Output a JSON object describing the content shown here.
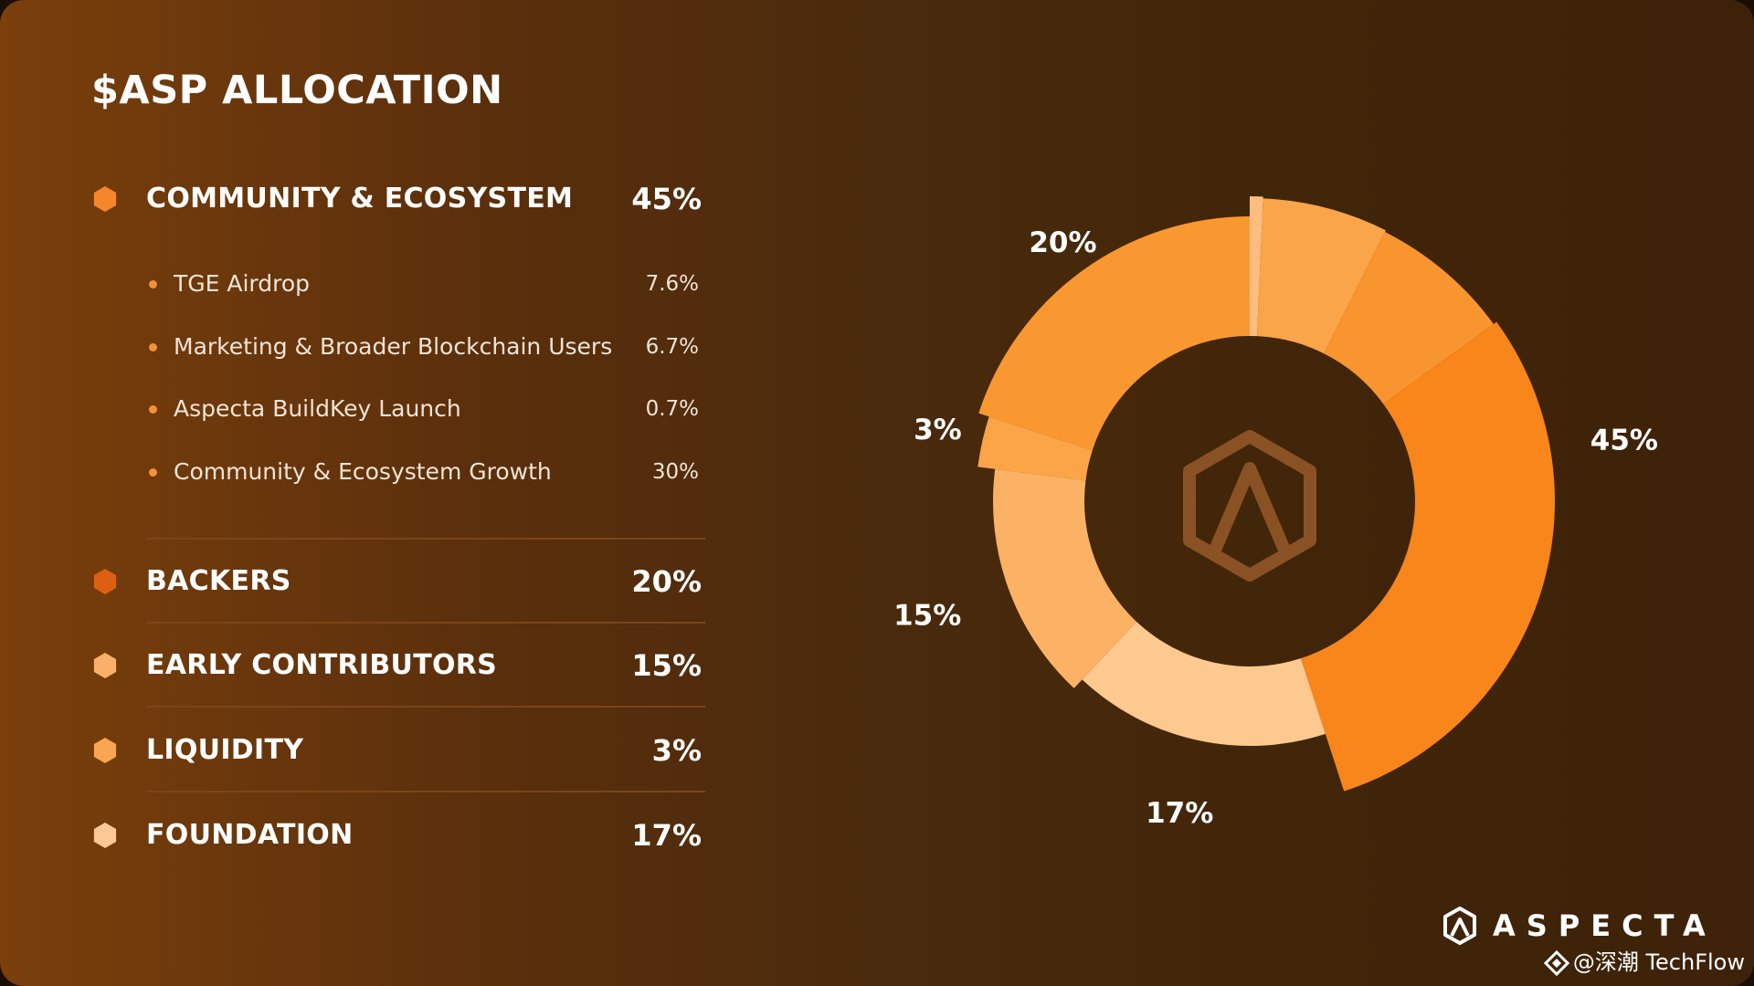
{
  "title": "$ASP ALLOCATION",
  "categories": [
    {
      "name": "COMMUNITY & ECOSYSTEM",
      "pct": "45%",
      "color": "#f5862b"
    },
    {
      "name": "BACKERS",
      "pct": "20%",
      "color": "#dd6012"
    },
    {
      "name": "EARLY CONTRIBUTORS",
      "pct": "15%",
      "color": "#fbb06a"
    },
    {
      "name": "LIQUIDITY",
      "pct": "3%",
      "color": "#f9a552"
    },
    {
      "name": "FOUNDATION",
      "pct": "17%",
      "color": "#fcc995"
    }
  ],
  "subitems": [
    {
      "label": "TGE Airdrop",
      "value": "7.6%"
    },
    {
      "label": "Marketing & Broader Blockchain Users",
      "value": "6.7%"
    },
    {
      "label": "Aspecta BuildKey Launch",
      "value": "0.7%"
    },
    {
      "label": "Community & Ecosystem Growth",
      "value": "30%"
    }
  ],
  "chart_data": {
    "type": "pie",
    "variant": "donut",
    "slices": [
      {
        "label": "COMMUNITY & ECOSYSTEM",
        "value": 45,
        "display": "45%",
        "color": "#f8861a"
      },
      {
        "label": "FOUNDATION",
        "value": 17,
        "display": "17%",
        "color": "#fdc98f"
      },
      {
        "label": "EARLY CONTRIBUTORS",
        "value": 15,
        "display": "15%",
        "color": "#fbb265"
      },
      {
        "label": "LIQUIDITY",
        "value": 3,
        "display": "3%",
        "color": "#fba448"
      },
      {
        "label": "BACKERS",
        "value": 20,
        "display": "20%",
        "color": "#f99830"
      }
    ],
    "sub_slices": [
      {
        "label": "Aspecta BuildKey Launch",
        "value": 0.7,
        "color": "#fdbd7f"
      },
      {
        "label": "Marketing & Broader Blockchain Users",
        "value": 6.7,
        "color": "#faa549"
      },
      {
        "label": "TGE Airdrop",
        "value": 7.6,
        "color": "#f8952f"
      },
      {
        "label": "Community & Ecosystem Growth",
        "value": 30,
        "color": "#f8861a"
      }
    ]
  },
  "brand": {
    "name": "ASPECTA"
  },
  "watermark": {
    "text": "@深潮 TechFlow"
  },
  "colors": {
    "accent": "#f8861a",
    "divider": "#7a4518",
    "bullet": "#f5903a",
    "logo": "#8a5224"
  }
}
